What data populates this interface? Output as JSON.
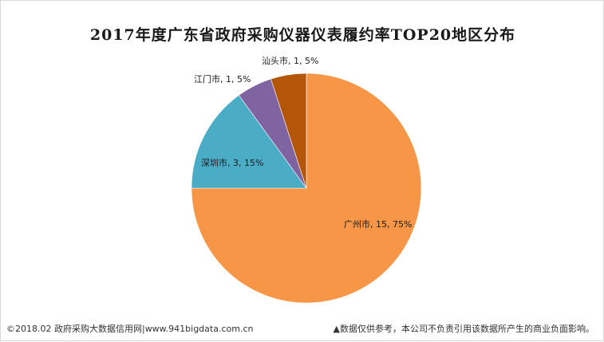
{
  "chart_data": {
    "type": "pie",
    "title": "2017年度广东省政府采购仪器仪表履约率TOP20地区分布",
    "slices": [
      {
        "name": "广州市",
        "value": 15,
        "percent": "75%",
        "color": "#f79646"
      },
      {
        "name": "深圳市",
        "value": 3,
        "percent": "15%",
        "color": "#4bacc6"
      },
      {
        "name": "江门市",
        "value": 1,
        "percent": "5%",
        "color": "#8064a2"
      },
      {
        "name": "汕头市",
        "value": 1,
        "percent": "5%",
        "color": "#b3560a"
      }
    ],
    "labels": [
      "广州市, 15, 75%",
      "深圳市, 3, 15%",
      "江门市, 1, 5%",
      "汕头市, 1, 5%"
    ]
  },
  "footer": {
    "left": "©2018.02 政府采购大数据信用网|www.941bigdata.com.cn",
    "right": "▲数据仅供参考，本公司不负责引用该数据所产生的商业负面影响。"
  }
}
